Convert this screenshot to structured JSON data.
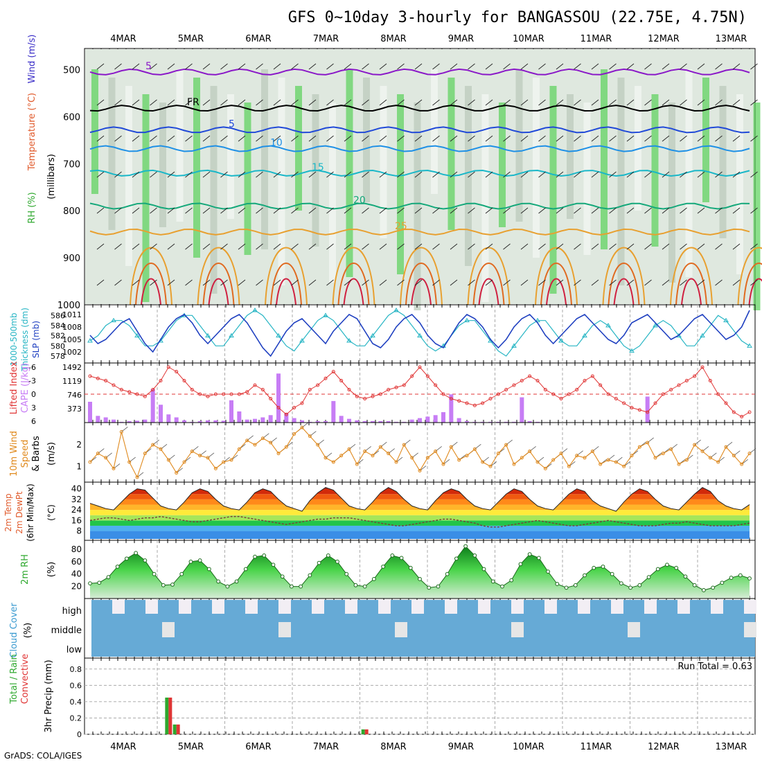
{
  "title": "GFS 0~10day 3-hourly for BANGASSOU (22.75E, 4.75N)",
  "footer": "GrADS: COLA/IGES",
  "dates": [
    "4MAR",
    "5MAR",
    "6MAR",
    "7MAR",
    "8MAR",
    "9MAR",
    "10MAR",
    "11MAR",
    "12MAR",
    "13MAR"
  ],
  "colors": {
    "rh": "#2ea82e",
    "temp": "#e05a2b",
    "wind": "#3b2fc8",
    "thickness": "#27b5c4",
    "slp": "#1e3fc0",
    "lifted": "#e03535",
    "cape": "#c77df5",
    "wind10": "#e08a1e",
    "precip_total": "#2ea82e",
    "precip_conv": "#e03535",
    "cloud": "#66aad6"
  },
  "panels": {
    "upper": {
      "labels": [
        "RH (%)",
        "Temperature (°C)",
        "Wind (m/s)"
      ],
      "unit": "(millibars)",
      "pressure_ticks": [
        "500",
        "600",
        "700",
        "800",
        "900",
        "1000"
      ],
      "contours": [
        {
          "label": "5",
          "color": "#8a18c8",
          "level": 505
        },
        {
          "label": "FR",
          "color": "#000000",
          "level": 582
        },
        {
          "label": "5",
          "color": "#2049d8",
          "level": 628
        },
        {
          "label": "10",
          "color": "#1e90e6",
          "level": 668
        },
        {
          "label": "15",
          "color": "#19b7c8",
          "level": 720
        },
        {
          "label": "20",
          "color": "#14a87a",
          "level": 790
        },
        {
          "label": "25",
          "color": "#e8a030",
          "level": 845
        }
      ]
    },
    "thickness": {
      "labels": [
        "1000-500mb",
        "Thickness (dm)",
        "SLP (mb)"
      ],
      "thickness_ticks": [
        "586",
        "584",
        "582",
        "580",
        "578"
      ],
      "slp_ticks": [
        "1011",
        "1008",
        "1005",
        "1002"
      ],
      "series": [
        {
          "name": "SLP",
          "values": [
            1006,
            1004,
            1005,
            1007,
            1009,
            1010,
            1007,
            1004,
            1002,
            1005,
            1008,
            1010,
            1011,
            1009,
            1006,
            1004,
            1006,
            1008,
            1010,
            1011,
            1009,
            1006,
            1003,
            1001,
            1004,
            1007,
            1009,
            1010,
            1008,
            1006,
            1004,
            1007,
            1009,
            1011,
            1010,
            1007,
            1004,
            1003,
            1005,
            1008,
            1010,
            1011,
            1009,
            1006,
            1004,
            1003,
            1006,
            1009,
            1011,
            1010,
            1008,
            1005,
            1003,
            1005,
            1008,
            1010,
            1011,
            1009,
            1006,
            1004,
            1006,
            1008,
            1010,
            1011,
            1009,
            1007,
            1005,
            1004,
            1006,
            1009,
            1010,
            1011,
            1009,
            1007,
            1005,
            1006,
            1008,
            1010,
            1011,
            1009,
            1007,
            1005,
            1006,
            1008,
            1012
          ]
        },
        {
          "name": "Thickness",
          "values": [
            581,
            582,
            584,
            585,
            585,
            584,
            582,
            580,
            580,
            581,
            583,
            585,
            586,
            586,
            584,
            582,
            580,
            580,
            582,
            584,
            586,
            587,
            586,
            584,
            582,
            580,
            579,
            581,
            583,
            585,
            586,
            585,
            583,
            581,
            580,
            580,
            582,
            584,
            586,
            587,
            586,
            584,
            582,
            580,
            579,
            580,
            582,
            584,
            585,
            585,
            583,
            581,
            579,
            578,
            580,
            582,
            584,
            585,
            585,
            583,
            581,
            580,
            580,
            582,
            584,
            585,
            584,
            582,
            580,
            579,
            580,
            582,
            584,
            585,
            584,
            582,
            580,
            580,
            582,
            584,
            586,
            585,
            583,
            581,
            580
          ]
        }
      ]
    },
    "cape": {
      "labels": [
        "Lifted Index",
        "CAPE (J/kg)"
      ],
      "li_ticks": [
        "-6",
        "-3",
        "0",
        "3",
        "6"
      ],
      "cape_ticks": [
        "1492",
        "1119",
        "746",
        "373"
      ],
      "lifted_index": [
        -4,
        -3.5,
        -3,
        -2,
        -1,
        -0.5,
        0,
        0.5,
        -1,
        -3,
        -6,
        -5,
        -3,
        -1,
        0,
        0.5,
        0,
        0,
        0,
        0,
        -0.5,
        -2,
        -1,
        1,
        3,
        4.5,
        3,
        2,
        -1,
        -2,
        -3.5,
        -5,
        -3,
        -1,
        0.5,
        1,
        0.5,
        0,
        -1,
        -1.5,
        -2,
        -4,
        -6,
        -4,
        -2,
        0,
        1,
        1.5,
        2,
        2.5,
        2,
        1,
        0,
        -1,
        -2,
        -3,
        -4,
        -3,
        -1,
        0,
        1,
        0,
        -1,
        -3,
        -4,
        -2,
        0,
        1,
        2,
        3,
        3.5,
        4,
        2,
        0,
        -1,
        -2,
        -3,
        -4,
        -6,
        -3,
        0,
        2,
        4,
        5,
        4
      ],
      "cape": [
        560,
        180,
        140,
        80,
        20,
        40,
        50,
        80,
        900,
        480,
        220,
        140,
        60,
        20,
        40,
        60,
        60,
        50,
        600,
        300,
        80,
        100,
        140,
        200,
        1320,
        260,
        120,
        60,
        20,
        40,
        40,
        580,
        180,
        100,
        60,
        40,
        40,
        40,
        40,
        20,
        20,
        80,
        120,
        160,
        200,
        280,
        760,
        120,
        40,
        20,
        20,
        20,
        20,
        20,
        20,
        680,
        40,
        20,
        10,
        0,
        0,
        0,
        0,
        0,
        0,
        0,
        0,
        0,
        0,
        0,
        0,
        700,
        0,
        0,
        0,
        0,
        0,
        0,
        0,
        0,
        0,
        0,
        0,
        0,
        0
      ]
    },
    "wind10": {
      "labels": [
        "10m Wind",
        "Speed",
        "& Barbs"
      ],
      "unit": "(m/s)",
      "ticks": [
        "2",
        "1"
      ],
      "values": [
        1.2,
        1.6,
        1.4,
        0.9,
        2.6,
        1.2,
        0.5,
        1.6,
        2.0,
        1.8,
        1.3,
        0.7,
        1.2,
        1.7,
        1.5,
        1.4,
        0.9,
        1.2,
        1.3,
        1.8,
        2.2,
        2.0,
        2.3,
        2.1,
        1.6,
        1.9,
        2.5,
        2.8,
        2.4,
        2.0,
        1.4,
        1.2,
        1.5,
        1.8,
        1.1,
        1.7,
        1.5,
        1.9,
        1.6,
        1.2,
        2.0,
        1.4,
        0.8,
        1.4,
        1.7,
        1.1,
        1.9,
        1.3,
        1.5,
        1.8,
        1.2,
        1.0,
        1.6,
        2.0,
        1.1,
        1.4,
        1.7,
        1.2,
        0.9,
        1.3,
        1.6,
        1.0,
        1.5,
        1.4,
        1.7,
        1.1,
        1.3,
        1.2,
        1.0,
        1.5,
        1.9,
        2.1,
        1.4,
        1.6,
        1.8,
        1.1,
        1.3,
        2.0,
        1.7,
        1.4,
        1.2,
        1.9,
        1.5,
        1.1,
        1.6
      ]
    },
    "temp2m": {
      "labels": [
        "2m Temp",
        "2m DewPt",
        "(6hr Min/Max)"
      ],
      "unit": "(°C)",
      "ticks": [
        "40",
        "32",
        "24",
        "16",
        "8"
      ],
      "temp": [
        29,
        27,
        25,
        24,
        30,
        36,
        40,
        39,
        33,
        27,
        25,
        24,
        30,
        37,
        40,
        38,
        32,
        27,
        25,
        24,
        30,
        37,
        40,
        38,
        32,
        27,
        25,
        23,
        31,
        37,
        41,
        39,
        33,
        27,
        25,
        24,
        30,
        37,
        41,
        38,
        32,
        27,
        25,
        24,
        31,
        37,
        40,
        38,
        32,
        27,
        25,
        24,
        30,
        36,
        40,
        38,
        32,
        27,
        25,
        24,
        30,
        36,
        40,
        38,
        31,
        27,
        25,
        23,
        30,
        36,
        40,
        38,
        32,
        27,
        25,
        24,
        30,
        36,
        41,
        38,
        31,
        27,
        25,
        24,
        28
      ],
      "dewpoint": [
        16,
        17,
        18,
        18,
        17,
        16,
        17,
        18,
        18,
        19,
        18,
        17,
        16,
        15,
        15,
        16,
        17,
        18,
        19,
        19,
        18,
        17,
        16,
        15,
        14,
        13,
        14,
        15,
        16,
        17,
        17,
        18,
        18,
        18,
        17,
        16,
        15,
        14,
        13,
        12,
        12,
        13,
        14,
        15,
        16,
        17,
        17,
        16,
        15,
        14,
        12,
        11,
        11,
        12,
        13,
        14,
        15,
        16,
        15,
        14,
        13,
        12,
        12,
        13,
        14,
        15,
        16,
        15,
        14,
        13,
        12,
        12,
        12,
        13,
        14,
        14,
        15,
        14,
        13,
        12,
        12,
        12,
        12,
        13,
        14
      ]
    },
    "rh2m": {
      "labels": [
        "2m RH"
      ],
      "unit": "(%)",
      "ticks": [
        "80",
        "60",
        "40",
        "20"
      ],
      "values": [
        25,
        26,
        35,
        52,
        65,
        74,
        62,
        40,
        22,
        23,
        40,
        60,
        62,
        48,
        28,
        20,
        28,
        48,
        68,
        70,
        55,
        36,
        20,
        20,
        38,
        58,
        70,
        60,
        40,
        22,
        20,
        32,
        52,
        70,
        66,
        50,
        32,
        18,
        20,
        40,
        65,
        85,
        70,
        48,
        28,
        20,
        30,
        56,
        72,
        66,
        44,
        24,
        18,
        22,
        38,
        50,
        52,
        40,
        25,
        18,
        22,
        35,
        48,
        55,
        50,
        36,
        22,
        14,
        18,
        26,
        34,
        38,
        33
      ]
    },
    "cloud": {
      "labels": [
        "Cloud Cover"
      ],
      "unit": "(%)",
      "levels": [
        "high",
        "middle",
        "low"
      ]
    },
    "precip": {
      "labels": [
        "Total / Rain",
        "Convective"
      ],
      "unit": "3hr Precip (mm)",
      "ticks": [
        "0.8",
        "0.6",
        "0.4",
        "0.2",
        "0"
      ],
      "run_total": "Run Total = 0.63",
      "bars": [
        {
          "date_index": 10,
          "value": 0.45
        },
        {
          "date_index": 11,
          "value": 0.12
        },
        {
          "date_index": 35,
          "value": 0.06
        }
      ]
    }
  }
}
